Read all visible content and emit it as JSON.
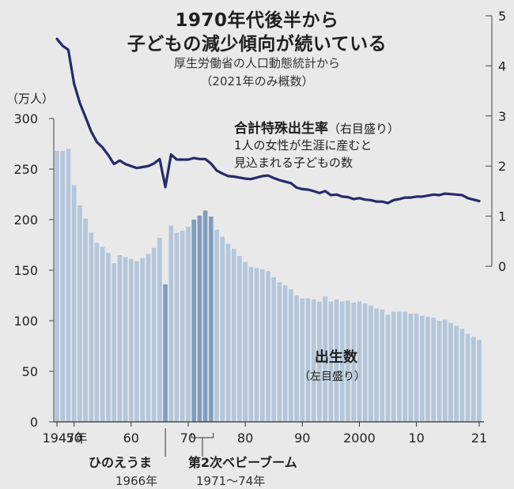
{
  "title_line1": "1970年代後半から",
  "title_line2": "子どもの減少傾向が続いている",
  "source_line1": "厚生労働省の人口動態統計から",
  "source_line2": "（2021年のみ概数）",
  "left_unit": "（万人）",
  "rate_title": "合計特殊出生率",
  "rate_title_sub": "（右目盛り）",
  "rate_desc_line1": "1人の女性が生涯に産むと",
  "rate_desc_line2": "見込まれる子どもの数",
  "births_title": "出生数",
  "births_sub": "（左目盛り）",
  "annotation1_title": "ひのえうま",
  "annotation1_date": "1966年",
  "annotation2_title": "第2次ベビーブーム",
  "annotation2_date": "1971〜74年",
  "colors": {
    "bar": "#b3c6db",
    "bar_highlight": "#7f9dbf",
    "line": "#262a6a",
    "background": "#e9e9e9"
  },
  "chart_data": {
    "type": "bar",
    "x_tick_labels": [
      "1947年",
      "50",
      "60",
      "70",
      "80",
      "90",
      "2000",
      "10",
      "21"
    ],
    "x_tick_years": [
      1947,
      1950,
      1960,
      1970,
      1980,
      1990,
      2000,
      2010,
      2021
    ],
    "left_axis": {
      "label": "（万人）",
      "ticks": [
        0,
        50,
        100,
        150,
        200,
        250,
        300
      ],
      "ylim": [
        0,
        300
      ]
    },
    "right_axis": {
      "ticks": [
        0,
        1,
        2,
        3,
        4,
        5
      ],
      "ylim": [
        0,
        5
      ]
    },
    "highlight_years": [
      1971,
      1972,
      1973,
      1974
    ],
    "series": [
      {
        "name": "出生数",
        "axis": "left",
        "type": "bar",
        "x": [
          1947,
          1948,
          1949,
          1950,
          1951,
          1952,
          1953,
          1954,
          1955,
          1956,
          1957,
          1958,
          1959,
          1960,
          1961,
          1962,
          1963,
          1964,
          1965,
          1966,
          1967,
          1968,
          1969,
          1970,
          1971,
          1972,
          1973,
          1974,
          1975,
          1976,
          1977,
          1978,
          1979,
          1980,
          1981,
          1982,
          1983,
          1984,
          1985,
          1986,
          1987,
          1988,
          1989,
          1990,
          1991,
          1992,
          1993,
          1994,
          1995,
          1996,
          1997,
          1998,
          1999,
          2000,
          2001,
          2002,
          2003,
          2004,
          2005,
          2006,
          2007,
          2008,
          2009,
          2010,
          2011,
          2012,
          2013,
          2014,
          2015,
          2016,
          2017,
          2018,
          2019,
          2020,
          2021
        ],
        "values": [
          268,
          268,
          270,
          234,
          214,
          201,
          187,
          177,
          173,
          167,
          157,
          165,
          163,
          161,
          159,
          162,
          166,
          172,
          182,
          136,
          194,
          187,
          189,
          193,
          200,
          204,
          209,
          203,
          190,
          183,
          176,
          171,
          164,
          158,
          153,
          152,
          151,
          149,
          143,
          138,
          135,
          131,
          125,
          122,
          122,
          121,
          119,
          124,
          119,
          121,
          119,
          120,
          118,
          119,
          117,
          115,
          112,
          111,
          106,
          109,
          109,
          109,
          107,
          107,
          105,
          104,
          103,
          100,
          101,
          98,
          95,
          92,
          87,
          84,
          81
        ]
      },
      {
        "name": "合計特殊出生率",
        "axis": "right",
        "type": "line",
        "x": [
          1947,
          1948,
          1949,
          1950,
          1951,
          1952,
          1953,
          1954,
          1955,
          1956,
          1957,
          1958,
          1959,
          1960,
          1961,
          1962,
          1963,
          1964,
          1965,
          1966,
          1967,
          1968,
          1969,
          1970,
          1971,
          1972,
          1973,
          1974,
          1975,
          1976,
          1977,
          1978,
          1979,
          1980,
          1981,
          1982,
          1983,
          1984,
          1985,
          1986,
          1987,
          1988,
          1989,
          1990,
          1991,
          1992,
          1993,
          1994,
          1995,
          1996,
          1997,
          1998,
          1999,
          2000,
          2001,
          2002,
          2003,
          2004,
          2005,
          2006,
          2007,
          2008,
          2009,
          2010,
          2011,
          2012,
          2013,
          2014,
          2015,
          2016,
          2017,
          2018,
          2019,
          2020,
          2021
        ],
        "values": [
          4.54,
          4.4,
          4.32,
          3.65,
          3.26,
          2.98,
          2.69,
          2.48,
          2.37,
          2.22,
          2.04,
          2.11,
          2.04,
          2.0,
          1.96,
          1.98,
          2.0,
          2.05,
          2.14,
          1.58,
          2.23,
          2.13,
          2.13,
          2.13,
          2.16,
          2.14,
          2.14,
          2.05,
          1.91,
          1.85,
          1.8,
          1.79,
          1.77,
          1.75,
          1.74,
          1.77,
          1.8,
          1.81,
          1.76,
          1.72,
          1.69,
          1.66,
          1.57,
          1.54,
          1.53,
          1.5,
          1.46,
          1.5,
          1.42,
          1.43,
          1.39,
          1.38,
          1.34,
          1.36,
          1.33,
          1.32,
          1.29,
          1.29,
          1.26,
          1.32,
          1.34,
          1.37,
          1.37,
          1.39,
          1.39,
          1.41,
          1.43,
          1.42,
          1.45,
          1.44,
          1.43,
          1.42,
          1.36,
          1.33,
          1.3
        ]
      }
    ]
  }
}
